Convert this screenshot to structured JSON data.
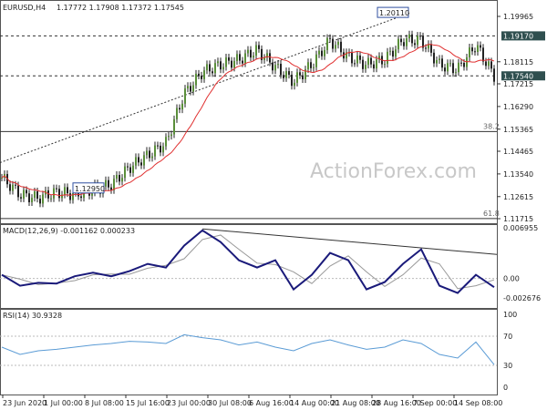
{
  "chart_data": [
    {
      "type": "candlestick-line",
      "title": "EURUSD,H4",
      "ohlc_header": "1.17772 1.17908 1.17372 1.17545",
      "y_ticks": [
        "1.19965",
        "1.18115",
        "1.17215",
        "1.16290",
        "1.15365",
        "1.14465",
        "1.13540",
        "1.12615",
        "1.11715"
      ],
      "ylim": [
        1.11715,
        1.19965
      ],
      "close_approx": [
        1.1339,
        1.127,
        1.1255,
        1.128,
        1.127,
        1.129,
        1.131,
        1.138,
        1.143,
        1.148,
        1.168,
        1.177,
        1.18,
        1.182,
        1.186,
        1.179,
        1.173,
        1.18,
        1.19,
        1.183,
        1.18,
        1.182,
        1.19,
        1.19,
        1.18,
        1.178,
        1.188,
        1.1754
      ],
      "levels": [
        {
          "label": "1.19170",
          "value": 1.1917,
          "style": "dashed"
        },
        {
          "label": "1.17540",
          "value": 1.1754,
          "style": "dashed"
        }
      ],
      "fib": [
        {
          "label": "38.2",
          "value": 1.1527
        },
        {
          "label": "61.8",
          "value": 1.1172
        }
      ],
      "annotations": [
        {
          "label": "1.20110",
          "value": 1.2011
        },
        {
          "label": "1.12950",
          "value": 1.1295
        }
      ],
      "ma_color": "#e03030",
      "watermark": "ActionForex.com"
    },
    {
      "type": "line",
      "title": "MACD(12,26,9) -0.001162 0.000233",
      "y_ticks": [
        "0.006955",
        "0.00",
        "-0.002676"
      ],
      "ylim": [
        -0.002676,
        0.006955
      ],
      "macd": [
        0.0005,
        -0.001,
        -0.0006,
        -0.0007,
        0.0003,
        0.0008,
        0.0003,
        0.001,
        0.002,
        0.0015,
        0.0045,
        0.0066,
        0.005,
        0.0025,
        0.0015,
        0.0025,
        -0.0015,
        0.0005,
        0.0035,
        0.0025,
        -0.0015,
        -0.0005,
        0.002,
        0.004,
        -0.001,
        -0.002,
        0.0005,
        -0.0012
      ],
      "signal_color": "#999999",
      "macd_color": "#1a1a7a"
    },
    {
      "type": "line",
      "title": "RSI(14) 30.9328",
      "y_ticks": [
        "100",
        "70",
        "30",
        "0"
      ],
      "ylim": [
        0,
        100
      ],
      "rsi": [
        55,
        45,
        50,
        52,
        55,
        58,
        60,
        63,
        62,
        60,
        72,
        68,
        65,
        58,
        62,
        55,
        50,
        60,
        65,
        58,
        52,
        55,
        65,
        60,
        45,
        40,
        62,
        31
      ],
      "color": "#5a9bd5"
    }
  ],
  "x_ticks": [
    "23 Jun 2020",
    "1 Jul 00:00",
    "8 Jul 08:00",
    "15 Jul 16:00",
    "23 Jul 00:00",
    "30 Jul 08:00",
    "6 Aug 16:00",
    "14 Aug 00:00",
    "21 Aug 08:00",
    "28 Aug 16:00",
    "7 Sep 00:00",
    "14 Sep 08:00"
  ]
}
